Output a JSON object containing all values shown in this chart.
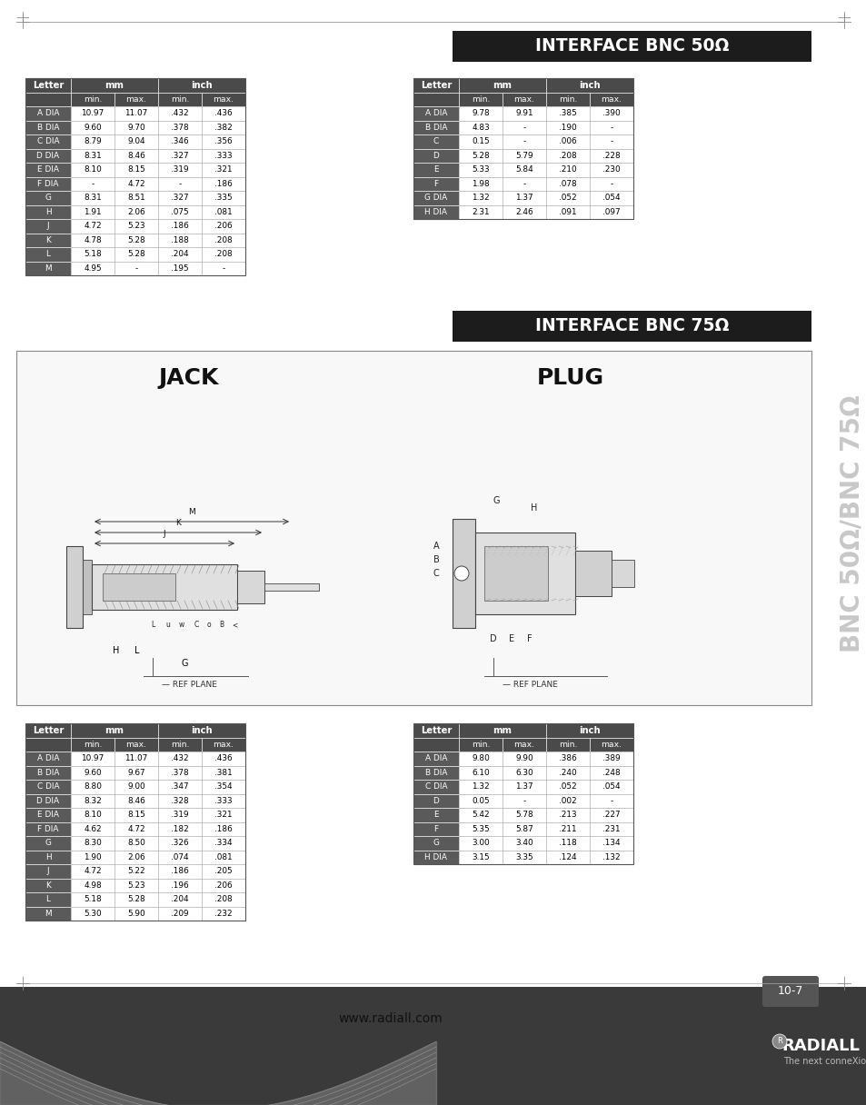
{
  "page_bg": "#ffffff",
  "header_bg": "#4a4a4a",
  "header_text": "#ffffff",
  "row_letter_bg": "#5a5a5a",
  "row_letter_fg": "#ffffff",
  "row_data_bg": "#ffffff",
  "row_data_fg": "#000000",
  "title_bnc50": "INTERFACE BNC 50Ω",
  "title_bnc75": "INTERFACE BNC 75Ω",
  "side_text": "BNC 50Ω/BNC 75Ω",
  "website": "www.radiall.com",
  "page_num": "10-7",
  "jack_label": "JACK",
  "plug_label": "PLUG",
  "ref_plane": "REF PLANE",
  "table1_rows": [
    [
      "A DIA",
      "10.97",
      "11.07",
      ".432",
      ".436"
    ],
    [
      "B DIA",
      "9.60",
      "9.70",
      ".378",
      ".382"
    ],
    [
      "C DIA",
      "8.79",
      "9.04",
      ".346",
      ".356"
    ],
    [
      "D DIA",
      "8.31",
      "8.46",
      ".327",
      ".333"
    ],
    [
      "E DIA",
      "8.10",
      "8.15",
      ".319",
      ".321"
    ],
    [
      "F DIA",
      "-",
      "4.72",
      "-",
      ".186"
    ],
    [
      "G",
      "8.31",
      "8.51",
      ".327",
      ".335"
    ],
    [
      "H",
      "1.91",
      "2.06",
      ".075",
      ".081"
    ],
    [
      "J",
      "4.72",
      "5.23",
      ".186",
      ".206"
    ],
    [
      "K",
      "4.78",
      "5.28",
      ".188",
      ".208"
    ],
    [
      "L",
      "5.18",
      "5.28",
      ".204",
      ".208"
    ],
    [
      "M",
      "4.95",
      "-",
      ".195",
      "-"
    ]
  ],
  "table2_rows": [
    [
      "A DIA",
      "9.78",
      "9.91",
      ".385",
      ".390"
    ],
    [
      "B DIA",
      "4.83",
      "-",
      ".190",
      "-"
    ],
    [
      "C",
      "0.15",
      "-",
      ".006",
      "-"
    ],
    [
      "D",
      "5.28",
      "5.79",
      ".208",
      ".228"
    ],
    [
      "E",
      "5.33",
      "5.84",
      ".210",
      ".230"
    ],
    [
      "F",
      "1.98",
      "-",
      ".078",
      "-"
    ],
    [
      "G DIA",
      "1.32",
      "1.37",
      ".052",
      ".054"
    ],
    [
      "H DIA",
      "2.31",
      "2.46",
      ".091",
      ".097"
    ]
  ],
  "table3_rows": [
    [
      "A DIA",
      "10.97",
      "11.07",
      ".432",
      ".436"
    ],
    [
      "B DIA",
      "9.60",
      "9.67",
      ".378",
      ".381"
    ],
    [
      "C DIA",
      "8.80",
      "9.00",
      ".347",
      ".354"
    ],
    [
      "D DIA",
      "8.32",
      "8.46",
      ".328",
      ".333"
    ],
    [
      "E DIA",
      "8.10",
      "8.15",
      ".319",
      ".321"
    ],
    [
      "F DIA",
      "4.62",
      "4.72",
      ".182",
      ".186"
    ],
    [
      "G",
      "8.30",
      "8.50",
      ".326",
      ".334"
    ],
    [
      "H",
      "1.90",
      "2.06",
      ".074",
      ".081"
    ],
    [
      "J",
      "4.72",
      "5.22",
      ".186",
      ".205"
    ],
    [
      "K",
      "4.98",
      "5.23",
      ".196",
      ".206"
    ],
    [
      "L",
      "5.18",
      "5.28",
      ".204",
      ".208"
    ],
    [
      "M",
      "5.30",
      "5.90",
      ".209",
      ".232"
    ]
  ],
  "table4_rows": [
    [
      "A DIA",
      "9.80",
      "9.90",
      ".386",
      ".389"
    ],
    [
      "B DIA",
      "6.10",
      "6.30",
      ".240",
      ".248"
    ],
    [
      "C DIA",
      "1.32",
      "1.37",
      ".052",
      ".054"
    ],
    [
      "D",
      "0.05",
      "-",
      ".002",
      "-"
    ],
    [
      "E",
      "5.42",
      "5.78",
      ".213",
      ".227"
    ],
    [
      "F",
      "5.35",
      "5.87",
      ".211",
      ".231"
    ],
    [
      "G",
      "3.00",
      "3.40",
      ".118",
      ".134"
    ],
    [
      "H DIA",
      "3.15",
      "3.35",
      ".124",
      ".132"
    ]
  ]
}
